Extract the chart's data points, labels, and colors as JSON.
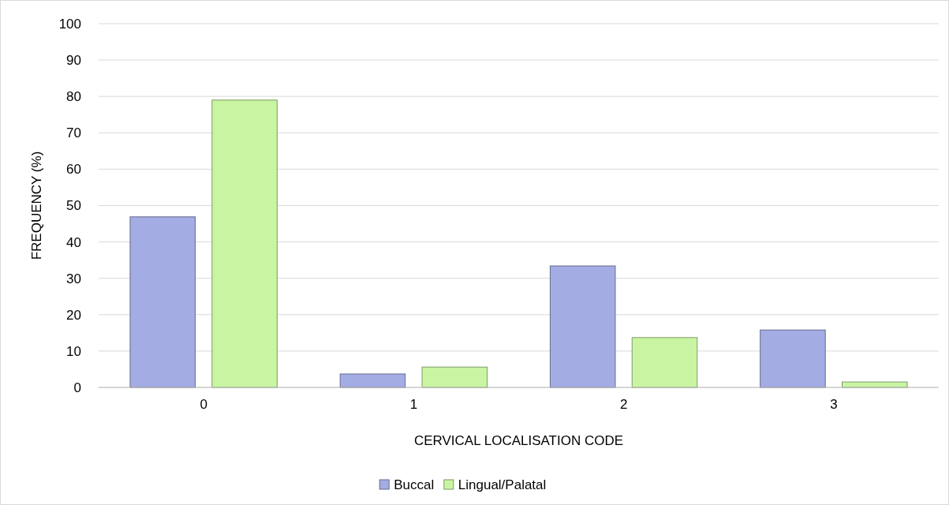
{
  "chart_data": {
    "type": "bar",
    "xlabel": "CERVICAL LOCALISATION CODE",
    "ylabel": "FREQUENCY (%)",
    "categories": [
      "0",
      "1",
      "2",
      "3"
    ],
    "series": [
      {
        "name": "Buccal",
        "color": "#a3ace3",
        "values": [
          46.9,
          3.7,
          33.4,
          15.8
        ]
      },
      {
        "name": "Lingual/Palatal",
        "color": "#c9f5a2",
        "values": [
          79,
          5.6,
          13.7,
          1.5
        ]
      }
    ],
    "ylim": [
      0,
      100
    ],
    "yticks": [
      0,
      10,
      20,
      30,
      40,
      50,
      60,
      70,
      80,
      90,
      100
    ],
    "grid": "y",
    "legend": "bottom"
  }
}
